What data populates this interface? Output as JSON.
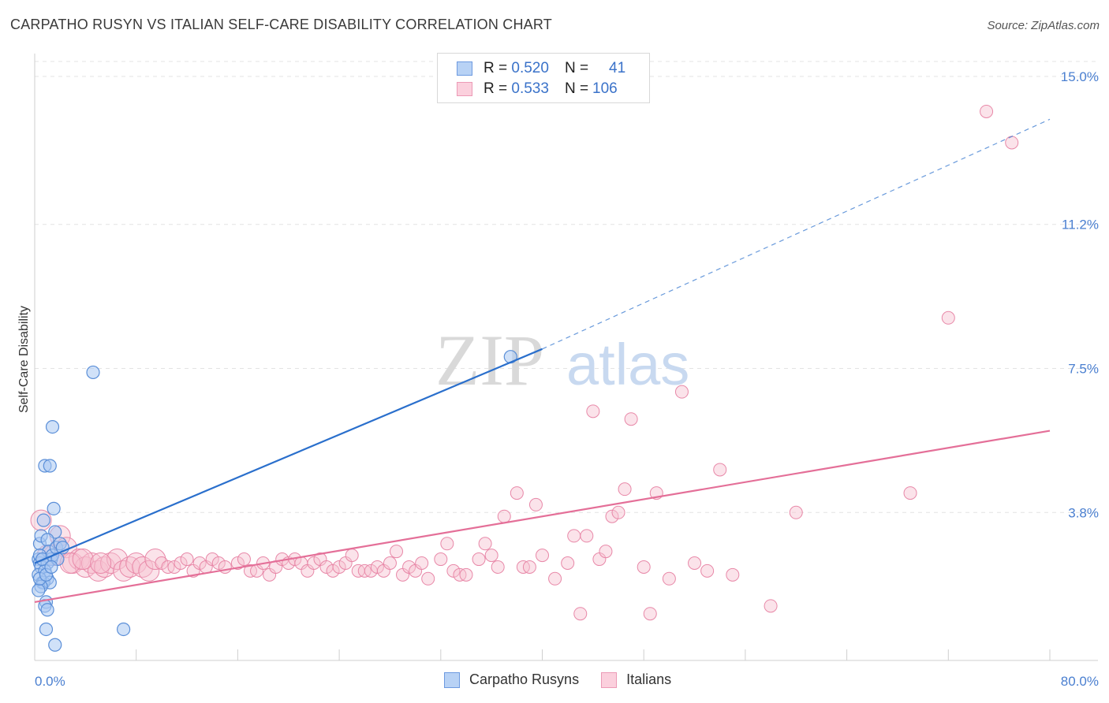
{
  "header": {
    "title": "CARPATHO RUSYN VS ITALIAN SELF-CARE DISABILITY CORRELATION CHART",
    "source": "Source: ZipAtlas.com"
  },
  "watermark": {
    "zip": "ZIP",
    "atlas": "atlas"
  },
  "legend": {
    "rows": [
      {
        "r_label": "R =",
        "r_value": "0.520",
        "n_label": "N =",
        "n_value": "41"
      },
      {
        "r_label": "R =",
        "r_value": "0.533",
        "n_label": "N =",
        "n_value": "106"
      }
    ]
  },
  "bottom_legend": {
    "series1": "Carpatho Rusyns",
    "series2": "Italians"
  },
  "colors": {
    "blue_fill": "#a9c8f2",
    "blue_stroke": "#5b8fd8",
    "blue_line": "#2a6fcc",
    "pink_fill": "#f7c1d1",
    "pink_stroke": "#e888a8",
    "pink_line": "#e46f98",
    "tick_text": "#4a7fd0"
  },
  "chart_data": {
    "type": "scatter",
    "title": "CARPATHO RUSYN VS ITALIAN SELF-CARE DISABILITY CORRELATION CHART",
    "xlabel": "",
    "ylabel": "Self-Care Disability",
    "xlim": [
      0,
      80
    ],
    "ylim": [
      0,
      15.5
    ],
    "x_tick_labels": [
      "0.0%",
      "80.0%"
    ],
    "y_ticks": [
      3.8,
      7.5,
      11.2,
      15.0
    ],
    "y_tick_labels": [
      "3.8%",
      "7.5%",
      "11.2%",
      "15.0%"
    ],
    "grid": true,
    "series": [
      {
        "name": "Carpatho Rusyns",
        "R": 0.52,
        "N": 41,
        "trend": {
          "x": [
            0,
            40,
            80
          ],
          "y": [
            2.5,
            8.0,
            13.9
          ],
          "solid_until": 40
        },
        "points": [
          [
            0.3,
            2.6
          ],
          [
            0.4,
            2.5
          ],
          [
            0.5,
            2.4
          ],
          [
            0.3,
            2.2
          ],
          [
            0.6,
            2.0
          ],
          [
            0.4,
            3.0
          ],
          [
            0.5,
            3.2
          ],
          [
            0.7,
            3.6
          ],
          [
            0.8,
            5.0
          ],
          [
            1.2,
            5.0
          ],
          [
            1.4,
            6.0
          ],
          [
            1.5,
            3.9
          ],
          [
            1.6,
            3.3
          ],
          [
            1.0,
            3.1
          ],
          [
            1.1,
            2.8
          ],
          [
            1.3,
            2.6
          ],
          [
            1.0,
            2.5
          ],
          [
            0.8,
            2.3
          ],
          [
            1.0,
            2.1
          ],
          [
            0.7,
            2.0
          ],
          [
            1.2,
            2.0
          ],
          [
            0.5,
            1.9
          ],
          [
            0.9,
            1.5
          ],
          [
            0.8,
            1.4
          ],
          [
            1.0,
            1.3
          ],
          [
            0.9,
            0.8
          ],
          [
            1.6,
            0.4
          ],
          [
            4.6,
            7.4
          ],
          [
            7.0,
            0.8
          ],
          [
            37.5,
            7.8
          ],
          [
            0.4,
            2.7
          ],
          [
            0.6,
            2.6
          ],
          [
            1.4,
            2.7
          ],
          [
            1.7,
            2.9
          ],
          [
            0.3,
            1.8
          ],
          [
            0.4,
            2.1
          ],
          [
            2.0,
            3.0
          ],
          [
            2.2,
            2.9
          ],
          [
            1.8,
            2.6
          ],
          [
            0.9,
            2.2
          ],
          [
            1.3,
            2.4
          ]
        ]
      },
      {
        "name": "Italians",
        "R": 0.533,
        "N": 106,
        "trend": {
          "x": [
            0,
            80
          ],
          "y": [
            1.5,
            5.9
          ]
        },
        "points": [
          [
            0.5,
            3.6
          ],
          [
            1.5,
            2.7
          ],
          [
            2.0,
            3.2
          ],
          [
            2.5,
            2.9
          ],
          [
            3.0,
            2.5
          ],
          [
            3.5,
            2.6
          ],
          [
            4.0,
            2.4
          ],
          [
            4.5,
            2.5
          ],
          [
            5.0,
            2.3
          ],
          [
            5.5,
            2.4
          ],
          [
            6.0,
            2.5
          ],
          [
            6.5,
            2.6
          ],
          [
            7.0,
            2.3
          ],
          [
            7.5,
            2.4
          ],
          [
            8.0,
            2.5
          ],
          [
            8.5,
            2.4
          ],
          [
            9.0,
            2.3
          ],
          [
            9.5,
            2.6
          ],
          [
            10.0,
            2.5
          ],
          [
            10.5,
            2.4
          ],
          [
            11.0,
            2.4
          ],
          [
            11.5,
            2.5
          ],
          [
            12.0,
            2.6
          ],
          [
            12.5,
            2.3
          ],
          [
            13.0,
            2.5
          ],
          [
            13.5,
            2.4
          ],
          [
            14.0,
            2.6
          ],
          [
            14.5,
            2.5
          ],
          [
            15.0,
            2.4
          ],
          [
            16.0,
            2.5
          ],
          [
            16.5,
            2.6
          ],
          [
            17.0,
            2.3
          ],
          [
            17.5,
            2.3
          ],
          [
            18.0,
            2.5
          ],
          [
            18.5,
            2.2
          ],
          [
            19.0,
            2.4
          ],
          [
            19.5,
            2.6
          ],
          [
            20.0,
            2.5
          ],
          [
            20.5,
            2.6
          ],
          [
            21.0,
            2.5
          ],
          [
            21.5,
            2.3
          ],
          [
            22.0,
            2.5
          ],
          [
            22.5,
            2.6
          ],
          [
            23.0,
            2.4
          ],
          [
            23.5,
            2.3
          ],
          [
            24.0,
            2.4
          ],
          [
            24.5,
            2.5
          ],
          [
            25.0,
            2.7
          ],
          [
            25.5,
            2.3
          ],
          [
            26.0,
            2.3
          ],
          [
            26.5,
            2.3
          ],
          [
            27.0,
            2.4
          ],
          [
            27.5,
            2.3
          ],
          [
            28.0,
            2.5
          ],
          [
            28.5,
            2.8
          ],
          [
            29.0,
            2.2
          ],
          [
            29.5,
            2.4
          ],
          [
            30.0,
            2.3
          ],
          [
            30.5,
            2.5
          ],
          [
            31.0,
            2.1
          ],
          [
            32.0,
            2.6
          ],
          [
            32.5,
            3.0
          ],
          [
            33.0,
            2.3
          ],
          [
            33.5,
            2.2
          ],
          [
            34.0,
            2.2
          ],
          [
            35.0,
            2.6
          ],
          [
            35.5,
            3.0
          ],
          [
            36.0,
            2.7
          ],
          [
            36.5,
            2.4
          ],
          [
            37.0,
            3.7
          ],
          [
            38.0,
            4.3
          ],
          [
            38.5,
            2.4
          ],
          [
            39.0,
            2.4
          ],
          [
            39.5,
            4.0
          ],
          [
            40.0,
            2.7
          ],
          [
            41.0,
            2.1
          ],
          [
            42.0,
            2.5
          ],
          [
            42.5,
            3.2
          ],
          [
            43.0,
            1.2
          ],
          [
            43.5,
            3.2
          ],
          [
            44.0,
            6.4
          ],
          [
            44.5,
            2.6
          ],
          [
            45.0,
            2.8
          ],
          [
            45.5,
            3.7
          ],
          [
            46.0,
            3.8
          ],
          [
            46.5,
            4.4
          ],
          [
            47.0,
            6.2
          ],
          [
            48.0,
            2.4
          ],
          [
            48.5,
            1.2
          ],
          [
            49.0,
            4.3
          ],
          [
            50.0,
            2.1
          ],
          [
            51.0,
            6.9
          ],
          [
            52.0,
            2.5
          ],
          [
            53.0,
            2.3
          ],
          [
            54.0,
            4.9
          ],
          [
            55.0,
            2.2
          ],
          [
            58.0,
            1.4
          ],
          [
            60.0,
            3.8
          ],
          [
            69.0,
            4.3
          ],
          [
            72.0,
            8.8
          ],
          [
            75.0,
            14.1
          ],
          [
            77.0,
            13.3
          ],
          [
            1.0,
            2.7
          ],
          [
            2.8,
            2.5
          ],
          [
            3.8,
            2.6
          ],
          [
            5.2,
            2.5
          ]
        ]
      }
    ]
  }
}
